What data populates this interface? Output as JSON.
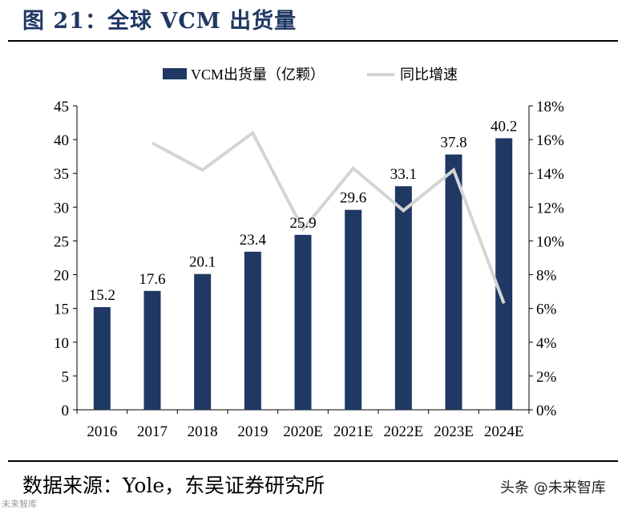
{
  "figure_title": "图 21：全球 VCM 出货量",
  "source": "数据来源：Yole，东吴证券研究所",
  "watermark": "头条 @未来智库",
  "watermark_left": "未来智库",
  "colors": {
    "bar": "#1f3864",
    "line": "#d4d4d4",
    "title": "#1f3864"
  },
  "chart_data": {
    "type": "bar",
    "categories": [
      "2016",
      "2017",
      "2018",
      "2019",
      "2020E",
      "2021E",
      "2022E",
      "2023E",
      "2024E"
    ],
    "series": [
      {
        "name": "VCM出货量（亿颗）",
        "type": "bar",
        "axis": "left",
        "values": [
          15.2,
          17.6,
          20.1,
          23.4,
          25.9,
          29.6,
          33.1,
          37.8,
          40.2
        ]
      },
      {
        "name": "同比增速",
        "type": "line",
        "axis": "right",
        "values": [
          null,
          15.8,
          14.2,
          16.4,
          10.7,
          14.3,
          11.8,
          14.2,
          6.3
        ]
      }
    ],
    "y_left": {
      "min": 0,
      "max": 45,
      "ticks": [
        "0",
        "5",
        "10",
        "15",
        "20",
        "25",
        "30",
        "35",
        "40",
        "45"
      ]
    },
    "y_right": {
      "min": 0,
      "max": 18,
      "ticks": [
        "0%",
        "2%",
        "4%",
        "6%",
        "8%",
        "10%",
        "12%",
        "14%",
        "16%",
        "18%"
      ]
    },
    "data_labels": [
      "15.2",
      "17.6",
      "20.1",
      "23.4",
      "25.9",
      "29.6",
      "33.1",
      "37.8",
      "40.2"
    ],
    "legend_position": "top",
    "grid": false
  }
}
